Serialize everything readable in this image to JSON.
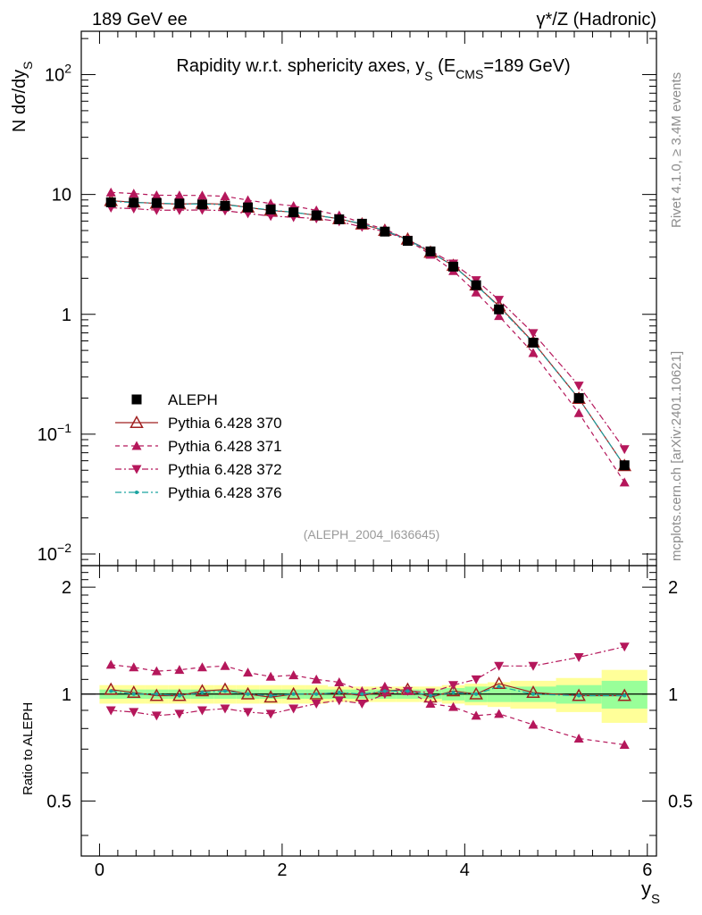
{
  "header": {
    "left": "189 GeV ee",
    "right": "γ*/Z (Hadronic)"
  },
  "side": {
    "rivet": "Rivet 4.1.0, ≥ 3.4M events",
    "mcplots": "mcplots.cern.ch [arXiv:2401.10621]"
  },
  "chart_data": {
    "type": "line",
    "title": "Rapidity w.r.t. sphericity axes, y_S (E_CMS=189 GeV)",
    "watermark": "(ALEPH_2004_I636645)",
    "xlabel": "y_S",
    "ylabel_top": "N dσ/dy_S",
    "ylabel_bottom": "Ratio to ALEPH",
    "xlim": [
      -0.2,
      6.1
    ],
    "xticks": [
      "0",
      "2",
      "4",
      "6"
    ],
    "top_ylim": [
      0.008,
      230
    ],
    "top_yscale": "log",
    "top_yticks": [
      {
        "value": 100,
        "label": "10^2"
      },
      {
        "value": 10,
        "label": "10"
      },
      {
        "value": 1,
        "label": "1"
      },
      {
        "value": 0.1,
        "label": "10^-1"
      },
      {
        "value": 0.01,
        "label": "10^-2"
      }
    ],
    "bottom_ylim": [
      0.35,
      2.3
    ],
    "bottom_yscale": "log",
    "bottom_yticks": [
      {
        "value": 2,
        "label": "2"
      },
      {
        "value": 1,
        "label": "1"
      },
      {
        "value": 0.5,
        "label": "0.5"
      }
    ],
    "x": [
      0.125,
      0.375,
      0.625,
      0.875,
      1.125,
      1.375,
      1.625,
      1.875,
      2.125,
      2.375,
      2.625,
      2.875,
      3.125,
      3.375,
      3.625,
      3.875,
      4.125,
      4.375,
      4.75,
      5.25,
      5.75
    ],
    "bin_edges": [
      0,
      0.25,
      0.5,
      0.75,
      1.0,
      1.25,
      1.5,
      1.75,
      2.0,
      2.25,
      2.5,
      2.75,
      3.0,
      3.25,
      3.5,
      3.75,
      4.0,
      4.25,
      4.5,
      5.0,
      5.5,
      6.0
    ],
    "band_inner": [
      0.03,
      0.03,
      0.03,
      0.03,
      0.03,
      0.03,
      0.03,
      0.03,
      0.03,
      0.03,
      0.03,
      0.03,
      0.03,
      0.03,
      0.03,
      0.04,
      0.05,
      0.05,
      0.05,
      0.06,
      0.09
    ],
    "band_outer": [
      0.06,
      0.06,
      0.06,
      0.06,
      0.06,
      0.06,
      0.06,
      0.06,
      0.06,
      0.06,
      0.05,
      0.05,
      0.05,
      0.05,
      0.05,
      0.06,
      0.07,
      0.08,
      0.09,
      0.11,
      0.17
    ],
    "series": [
      {
        "name": "ALEPH",
        "style": "data",
        "color": "#000000",
        "values": [
          8.6,
          8.55,
          8.5,
          8.4,
          8.25,
          8.05,
          7.8,
          7.5,
          7.1,
          6.7,
          6.2,
          5.7,
          4.9,
          4.1,
          3.35,
          2.5,
          1.75,
          1.1,
          0.58,
          0.2,
          0.055
        ]
      },
      {
        "name": "Pythia 6.428 370",
        "style": "open-triangle",
        "color": "#a02020",
        "ratio": [
          1.03,
          1.01,
          0.99,
          0.99,
          1.02,
          1.03,
          1.0,
          0.98,
          1.0,
          1.0,
          1.01,
          0.99,
          1.02,
          1.03,
          0.98,
          1.02,
          1.0,
          1.07,
          1.01,
          0.99,
          0.99
        ]
      },
      {
        "name": "Pythia 6.428 371",
        "style": "triangle-up-dashed",
        "color": "#b5175b",
        "ratio": [
          1.21,
          1.19,
          1.16,
          1.17,
          1.19,
          1.2,
          1.15,
          1.12,
          1.13,
          1.1,
          1.08,
          1.02,
          1.05,
          1.02,
          0.94,
          0.92,
          0.87,
          0.88,
          0.82,
          0.75,
          0.72
        ]
      },
      {
        "name": "Pythia 6.428 372",
        "style": "triangle-down-dashdot",
        "color": "#b5175b",
        "ratio": [
          0.9,
          0.89,
          0.87,
          0.88,
          0.9,
          0.91,
          0.89,
          0.88,
          0.91,
          0.94,
          0.96,
          0.94,
          1.0,
          1.02,
          1.01,
          1.06,
          1.1,
          1.2,
          1.2,
          1.27,
          1.36
        ]
      },
      {
        "name": "Pythia 6.428 376",
        "style": "dot-dashdot",
        "color": "#1aa3a0",
        "ratio": [
          1.02,
          1.0,
          1.0,
          0.99,
          1.01,
          1.02,
          1.0,
          0.99,
          1.0,
          1.0,
          1.01,
          1.0,
          1.02,
          1.02,
          0.99,
          1.01,
          1.0,
          1.05,
          1.0,
          0.99,
          0.99
        ]
      }
    ]
  }
}
